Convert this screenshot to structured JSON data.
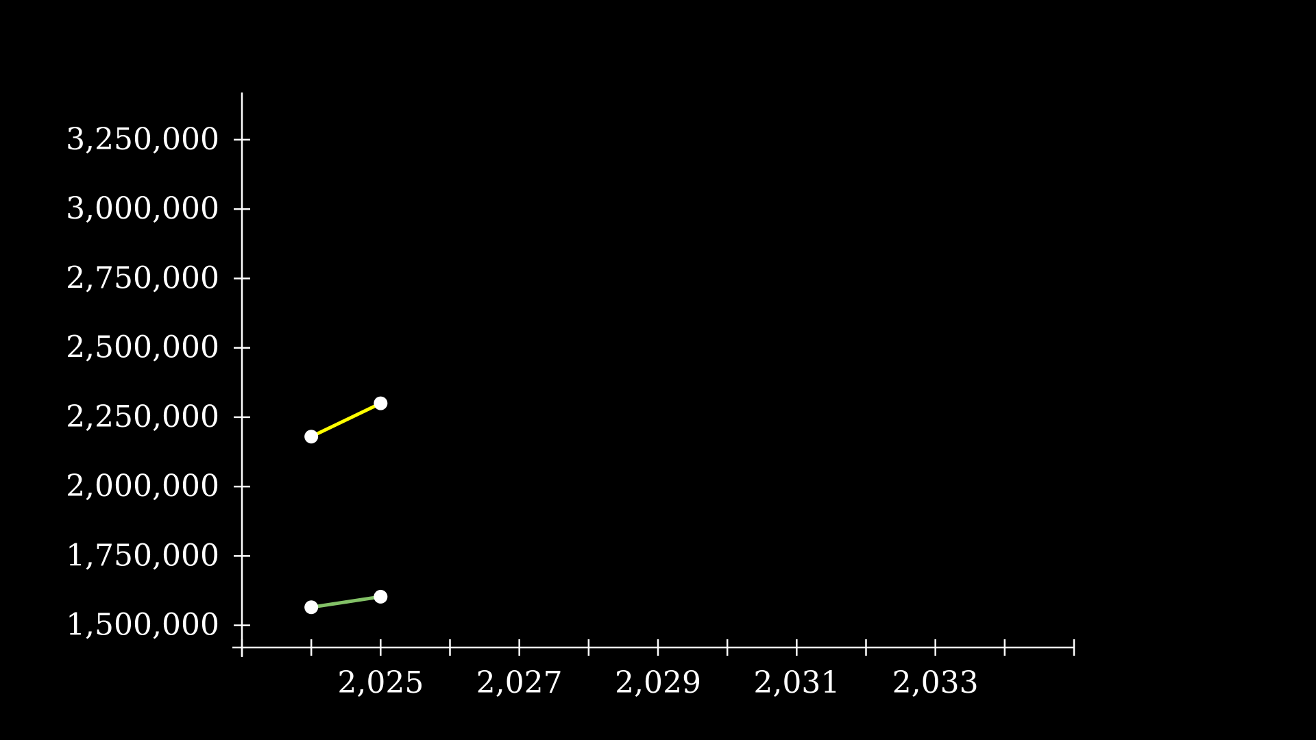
{
  "chart_data": {
    "type": "line",
    "title": "",
    "xlabel": "",
    "ylabel": "",
    "xlim": [
      2023,
      2035
    ],
    "ylim": [
      1420000,
      3420000
    ],
    "x_ticks": [
      2023,
      2024,
      2025,
      2026,
      2027,
      2028,
      2029,
      2030,
      2031,
      2032,
      2033,
      2034,
      2035
    ],
    "x_tick_labels": [
      {
        "value": 2025,
        "label": "2,025"
      },
      {
        "value": 2027,
        "label": "2,027"
      },
      {
        "value": 2029,
        "label": "2,029"
      },
      {
        "value": 2031,
        "label": "2,031"
      },
      {
        "value": 2033,
        "label": "2,033"
      }
    ],
    "y_ticks": [
      1500000,
      1750000,
      2000000,
      2250000,
      2500000,
      2750000,
      3000000,
      3250000,
      3500000
    ],
    "y_tick_labels": [
      {
        "value": 1500000,
        "label": "1,500,000"
      },
      {
        "value": 1750000,
        "label": "1,750,000"
      },
      {
        "value": 2000000,
        "label": "2,000,000"
      },
      {
        "value": 2250000,
        "label": "2,250,000"
      },
      {
        "value": 2500000,
        "label": "2,500,000"
      },
      {
        "value": 2750000,
        "label": "2,750,000"
      },
      {
        "value": 3000000,
        "label": "3,000,000"
      },
      {
        "value": 3250000,
        "label": "3,250,000"
      }
    ],
    "grid": false,
    "series": [
      {
        "color": "#ffff00",
        "x": [
          2024,
          2025
        ],
        "y": [
          2180000,
          2300000
        ]
      },
      {
        "color": "#83c167",
        "x": [
          2024,
          2025
        ],
        "y": [
          1565000,
          1603000
        ]
      }
    ],
    "marker_color": "#ffffff",
    "axis_color": "#ffffff",
    "background": "#000000"
  }
}
